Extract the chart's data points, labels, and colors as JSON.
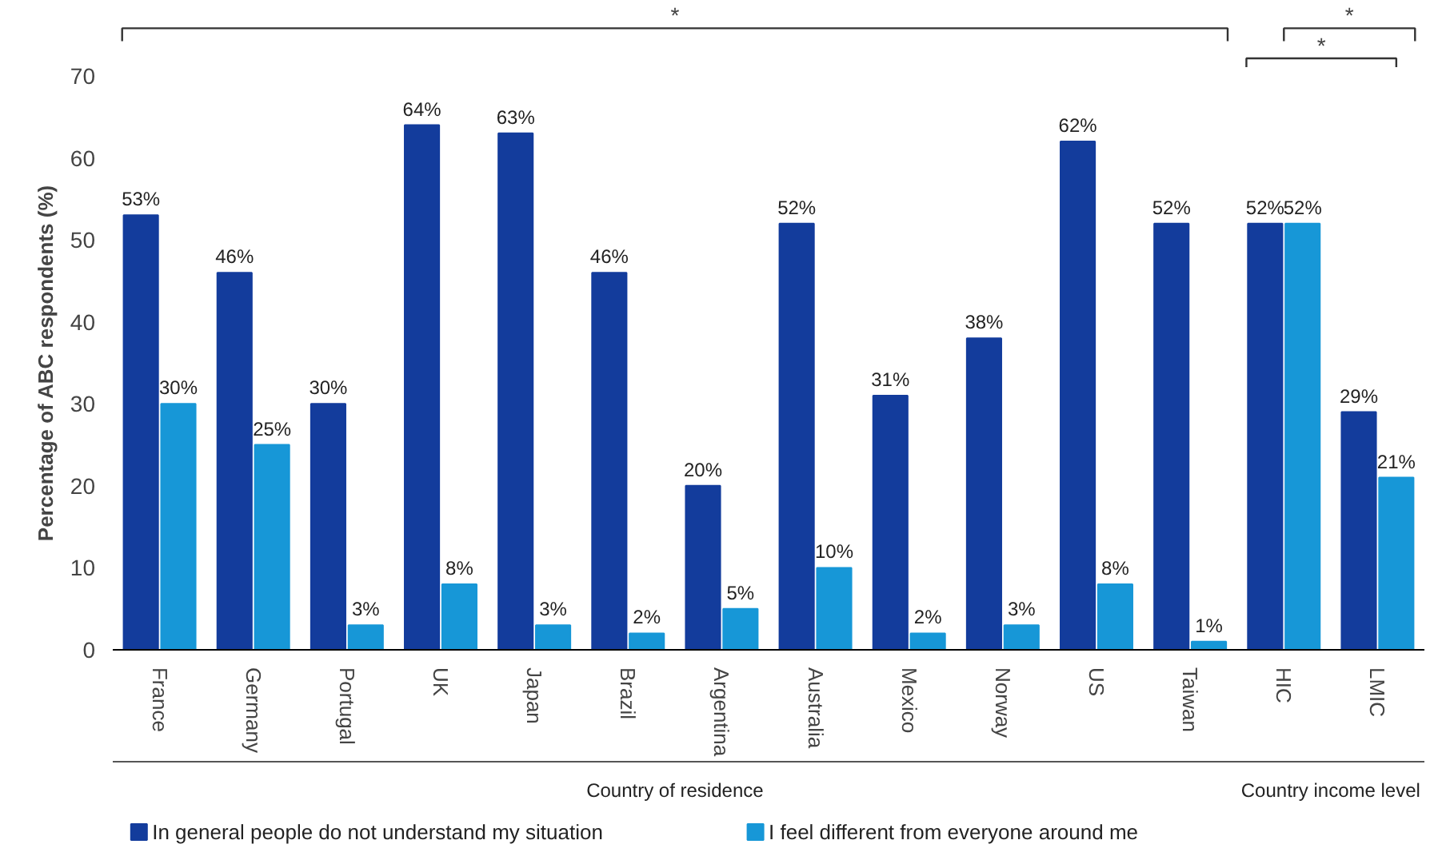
{
  "chart_data": {
    "type": "bar",
    "ylabel": "Percentage of ABC respondents (%)",
    "categories": [
      "France",
      "Germany",
      "Portugal",
      "UK",
      "Japan",
      "Brazil",
      "Argentina",
      "Australia",
      "Mexico",
      "Norway",
      "US",
      "Taiwan",
      "HIC",
      "LMIC"
    ],
    "series": [
      {
        "name": "In general people do not understand my situation",
        "color": "#133c9c",
        "values": [
          53,
          46,
          30,
          64,
          63,
          46,
          20,
          52,
          31,
          38,
          62,
          52,
          52,
          29
        ],
        "value_labels": [
          "53%",
          "46%",
          "30%",
          "64%",
          "63%",
          "46%",
          "20%",
          "52%",
          "31%",
          "38%",
          "62%",
          "52%",
          "52%",
          "29%"
        ]
      },
      {
        "name": "I feel different from everyone around me",
        "color": "#1797d7",
        "values": [
          30,
          25,
          3,
          8,
          3,
          2,
          5,
          10,
          2,
          3,
          8,
          1,
          52,
          21
        ],
        "value_labels": [
          "30%",
          "25%",
          "3%",
          "8%",
          "3%",
          "2%",
          "5%",
          "10%",
          "2%",
          "3%",
          "8%",
          "1%",
          "52%",
          "21%"
        ]
      }
    ],
    "ylim": [
      0,
      70
    ],
    "yticks": [
      0,
      10,
      20,
      30,
      40,
      50,
      60,
      70
    ],
    "grid": false,
    "legend": "bottom",
    "annotations": [
      "*",
      "*",
      "*",
      "Country of residence",
      "Country income level"
    ]
  }
}
